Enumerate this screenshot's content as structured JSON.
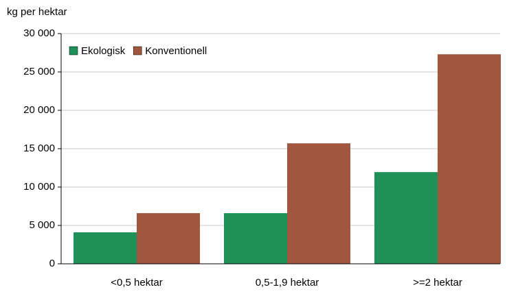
{
  "chart_data": {
    "type": "bar",
    "y_label": "kg per hektar",
    "categories": [
      "<0,5 hektar",
      "0,5-1,9 hektar",
      ">=2 hektar"
    ],
    "series": [
      {
        "name": "Ekologisk",
        "color": "#1f9158",
        "values": [
          4100,
          6600,
          11950
        ]
      },
      {
        "name": "Konventionell",
        "color": "#a0563f",
        "values": [
          6600,
          15700,
          27300
        ]
      }
    ],
    "ylim": [
      0,
      30000
    ],
    "yticks": [
      0,
      {
        "value": 5000,
        "label": "5 000"
      },
      {
        "value": 10000,
        "label": "10 000"
      },
      {
        "value": 15000,
        "label": "15 000"
      },
      {
        "value": 20000,
        "label": "20 000"
      },
      {
        "value": 25000,
        "label": "25 000"
      },
      {
        "value": 30000,
        "label": "30 000"
      }
    ],
    "grid": true,
    "legend": "top-left"
  }
}
